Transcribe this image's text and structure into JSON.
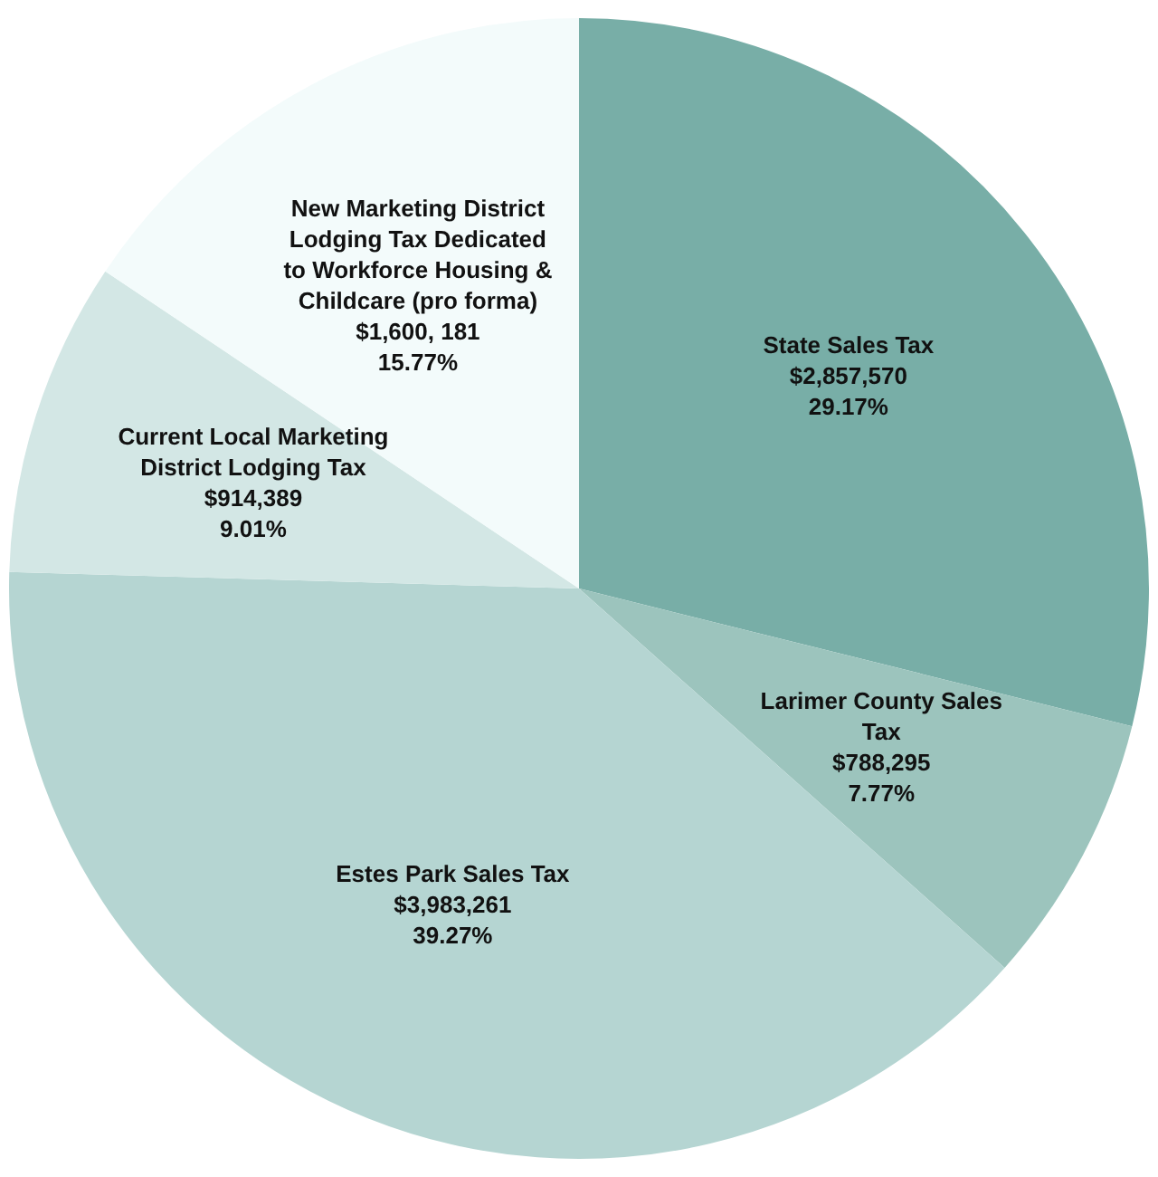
{
  "chart_data": {
    "type": "pie",
    "categories": [
      "State Sales Tax",
      "Larimer County Sales Tax",
      "Estes Park Sales Tax",
      "Current Local Marketing District Lodging Tax",
      "New Marketing District Lodging Tax Dedicated to Workforce Housing & Childcare (pro forma)"
    ],
    "values": [
      29.17,
      7.77,
      39.27,
      9.01,
      15.77
    ],
    "value_labels": [
      "$2,857,570\n29.17%",
      "$788,295\n7.77%",
      "$3,983,261\n39.27%",
      "$914,389\n9.01%",
      "$1,600, 181\n15.77%"
    ],
    "colors": [
      "#78aea7",
      "#9cc4bd",
      "#b5d5d2",
      "#d3e7e5",
      "#f3fbfb"
    ],
    "legend": false
  }
}
